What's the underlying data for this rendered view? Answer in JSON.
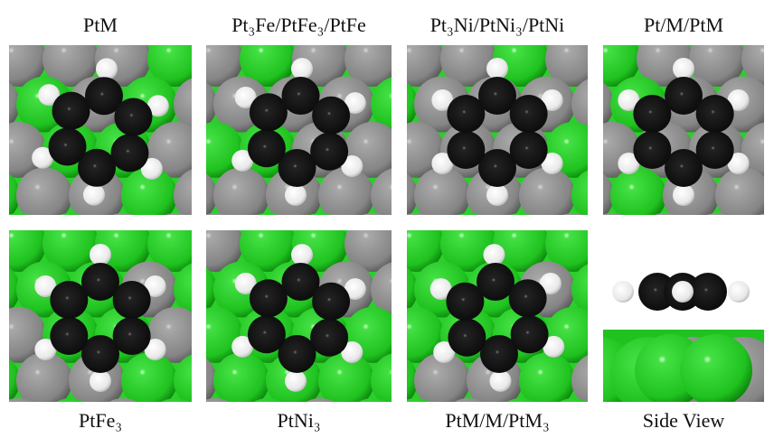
{
  "panels": [
    {
      "label": "PtM"
    },
    {
      "label": "Pt₃Fe/PtFe₃/PtFe"
    },
    {
      "label": "Pt₃Ni/PtNi₃/PtNi"
    },
    {
      "label": "Pt/M/PtM"
    },
    {
      "label": "PtFe₃"
    },
    {
      "label": "PtNi₃"
    },
    {
      "label": "PtM/M/PtM₃"
    },
    {
      "label": "Side View"
    }
  ]
}
